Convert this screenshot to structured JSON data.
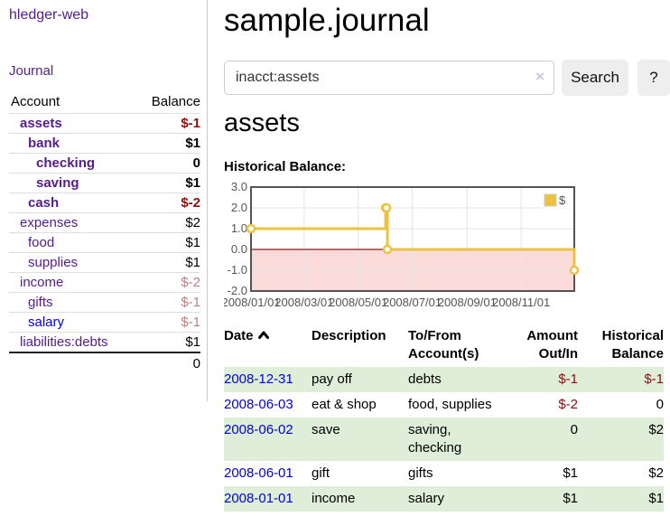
{
  "app": {
    "title": "hledger-web",
    "nav_journal": "Journal"
  },
  "sidebar": {
    "header": {
      "account": "Account",
      "balance": "Balance"
    },
    "rows": [
      {
        "name": "assets",
        "indent": 0,
        "bold": true,
        "balance": "$-1",
        "balance_style": "neg",
        "link": "purple"
      },
      {
        "name": "bank",
        "indent": 1,
        "bold": true,
        "balance": "$1",
        "balance_style": "pos",
        "link": "purple"
      },
      {
        "name": "checking",
        "indent": 2,
        "bold": true,
        "balance": "0",
        "balance_style": "pos",
        "link": "purple"
      },
      {
        "name": "saving",
        "indent": 2,
        "bold": true,
        "balance": "$1",
        "balance_style": "pos",
        "link": "purple"
      },
      {
        "name": "cash",
        "indent": 1,
        "bold": true,
        "balance": "$-2",
        "balance_style": "neg",
        "link": "purple"
      },
      {
        "name": "expenses",
        "indent": 0,
        "bold": false,
        "balance": "$2",
        "balance_style": "pos",
        "link": "purple"
      },
      {
        "name": "food",
        "indent": 1,
        "bold": false,
        "balance": "$1",
        "balance_style": "pos",
        "link": "purple"
      },
      {
        "name": "supplies",
        "indent": 1,
        "bold": false,
        "balance": "$1",
        "balance_style": "pos",
        "link": "purple"
      },
      {
        "name": "income",
        "indent": 0,
        "bold": false,
        "balance": "$-2",
        "balance_style": "faded-neg",
        "link": "purple"
      },
      {
        "name": "gifts",
        "indent": 1,
        "bold": false,
        "balance": "$-1",
        "balance_style": "faded-neg",
        "link": "purple"
      },
      {
        "name": "salary",
        "indent": 1,
        "bold": false,
        "balance": "$-1",
        "balance_style": "faded-neg",
        "link": "blue"
      },
      {
        "name": "liabilities:debts",
        "indent": 0,
        "bold": false,
        "balance": "$1",
        "balance_style": "pos",
        "link": "purple"
      }
    ],
    "total": "0"
  },
  "main": {
    "title": "sample.journal",
    "search": {
      "value": "inacct:assets",
      "clear_icon": "×",
      "button": "Search",
      "help": "?"
    },
    "account_heading": "assets",
    "chart_label": "Historical Balance:"
  },
  "chart_data": {
    "type": "line",
    "title": "Historical Balance",
    "xlabel": "",
    "ylabel": "",
    "step": true,
    "xlim": [
      "2008-01-01",
      "2008-12-31"
    ],
    "ylim": [
      -2,
      3
    ],
    "grid": true,
    "legend": {
      "label": "$",
      "position": "top-right"
    },
    "series": [
      {
        "name": "$",
        "color": "#edc240",
        "points": [
          {
            "date": "2008-01-01",
            "value": 1
          },
          {
            "date": "2008-06-01",
            "value": 2
          },
          {
            "date": "2008-06-02",
            "value": 2
          },
          {
            "date": "2008-06-03",
            "value": 0
          },
          {
            "date": "2008-12-31",
            "value": -1
          }
        ]
      }
    ],
    "x_ticks": [
      {
        "date": "2008-01-01",
        "label": "2008/01/01"
      },
      {
        "date": "2008-03-01",
        "label": "2008/03/01"
      },
      {
        "date": "2008-05-01",
        "label": "2008/05/01"
      },
      {
        "date": "2008-07-01",
        "label": "2008/07/01"
      },
      {
        "date": "2008-09-01",
        "label": "2008/09/01"
      },
      {
        "date": "2008-11-01",
        "label": "2008/11/01"
      }
    ],
    "y_ticks": [
      {
        "value": 3,
        "label": "3.0"
      },
      {
        "value": 2,
        "label": "2.0"
      },
      {
        "value": 1,
        "label": "1.0"
      },
      {
        "value": 0,
        "label": "0.0"
      },
      {
        "value": -1,
        "label": "-1.0"
      },
      {
        "value": -2,
        "label": "-2.0"
      }
    ],
    "negative_region_fill": "#fbdada",
    "zero_line_color": "#8c1717",
    "border_color": "#545454",
    "grid_color": "#e6e6e6"
  },
  "register": {
    "headers": {
      "date": "Date",
      "description": "Description",
      "accounts": "To/From Account(s)",
      "amount": "Amount Out/In",
      "balance": "Historical Balance"
    },
    "rows": [
      {
        "date": "2008-12-31",
        "description": "pay off",
        "accounts": "debts",
        "amount": "$-1",
        "amount_neg": true,
        "balance": "$-1",
        "balance_neg": true,
        "stripe": true
      },
      {
        "date": "2008-06-03",
        "description": "eat & shop",
        "accounts": "food, supplies",
        "amount": "$-2",
        "amount_neg": true,
        "balance": "0",
        "balance_neg": false,
        "stripe": false
      },
      {
        "date": "2008-06-02",
        "description": "save",
        "accounts": "saving, checking",
        "amount": "0",
        "amount_neg": false,
        "balance": "$2",
        "balance_neg": false,
        "stripe": true
      },
      {
        "date": "2008-06-01",
        "description": "gift",
        "accounts": "gifts",
        "amount": "$1",
        "amount_neg": false,
        "balance": "$2",
        "balance_neg": false,
        "stripe": false
      },
      {
        "date": "2008-01-01",
        "description": "income",
        "accounts": "salary",
        "amount": "$1",
        "amount_neg": false,
        "balance": "$1",
        "balance_neg": false,
        "stripe": true
      }
    ]
  }
}
